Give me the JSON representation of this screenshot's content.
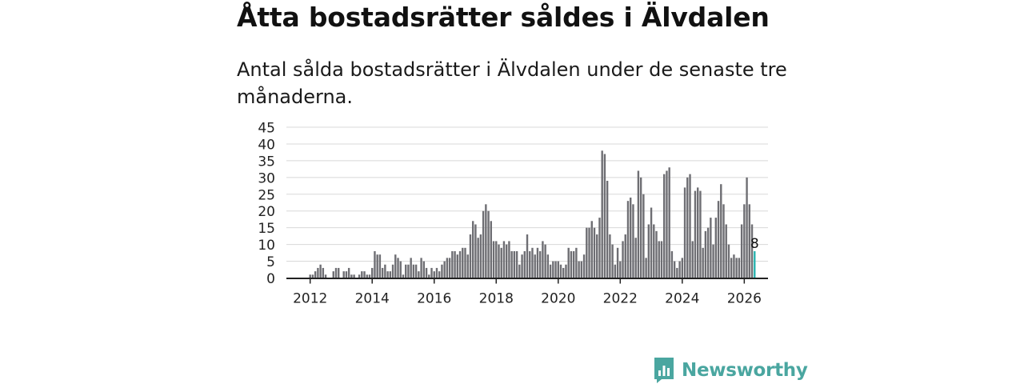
{
  "header": {
    "title": "Åtta bostadsrätter såldes i Älvdalen",
    "subtitle": "Antal sålda bostadsrätter i Älvdalen under de senaste tre månaderna."
  },
  "brand": {
    "name": "Newsworthy",
    "color": "#4aa6a0"
  },
  "colors": {
    "bar": "#6e6e73",
    "highlight": "#2ab3b0",
    "grid": "#d8d8d8",
    "axis": "#222222"
  },
  "chart_data": {
    "type": "bar",
    "title": "Antal sålda bostadsrätter i Älvdalen",
    "xlabel": "",
    "ylabel": "",
    "ylim": [
      0,
      45
    ],
    "yticks": [
      0,
      5,
      10,
      15,
      20,
      25,
      30,
      35,
      40,
      45
    ],
    "xticks": [
      "2012",
      "2014",
      "2016",
      "2018",
      "2020",
      "2022",
      "2024",
      "2026"
    ],
    "start": "2012-01",
    "end": "2026-02",
    "highlight_label": "8",
    "values": [
      1,
      1,
      2,
      3,
      4,
      3,
      1,
      0,
      0,
      2,
      3,
      3,
      0,
      2,
      2,
      3,
      1,
      1,
      0,
      1,
      2,
      2,
      1,
      1,
      3,
      8,
      7,
      7,
      3,
      4,
      2,
      2,
      4,
      7,
      6,
      5,
      1,
      4,
      4,
      6,
      4,
      4,
      2,
      6,
      5,
      3,
      1,
      3,
      2,
      3,
      2,
      4,
      5,
      6,
      6,
      8,
      8,
      7,
      8,
      9,
      9,
      7,
      13,
      17,
      16,
      12,
      13,
      20,
      22,
      20,
      17,
      11,
      11,
      10,
      9,
      11,
      10,
      11,
      8,
      8,
      8,
      4,
      7,
      8,
      13,
      8,
      9,
      7,
      9,
      8,
      11,
      10,
      7,
      4,
      5,
      5,
      5,
      4,
      3,
      4,
      9,
      8,
      8,
      9,
      5,
      5,
      7,
      15,
      15,
      17,
      15,
      13,
      18,
      38,
      37,
      29,
      13,
      10,
      4,
      9,
      5,
      11,
      13,
      23,
      24,
      22,
      12,
      32,
      30,
      25,
      6,
      16,
      21,
      16,
      14,
      11,
      11,
      31,
      32,
      33,
      8,
      5,
      3,
      5,
      6,
      27,
      30,
      31,
      11,
      26,
      27,
      26,
      9,
      14,
      15,
      18,
      10,
      18,
      23,
      28,
      22,
      16,
      10,
      6,
      7,
      6,
      6,
      16,
      22,
      30,
      22,
      16,
      8
    ]
  }
}
